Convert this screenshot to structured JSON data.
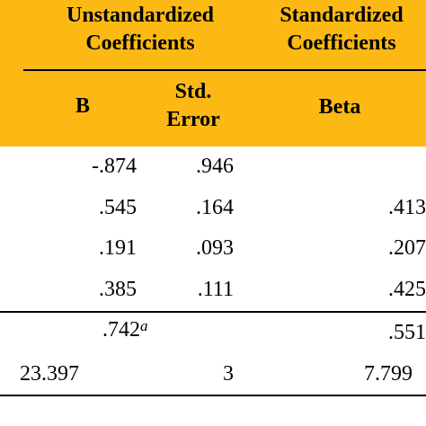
{
  "header": {
    "unstandardized": [
      "Unstandardized",
      "Coefficients"
    ],
    "standardized": [
      "Standardized",
      "Coefficients"
    ],
    "col_b": "B",
    "col_std_error": [
      "Std.",
      "Error"
    ],
    "col_beta": "Beta"
  },
  "rows": [
    {
      "b": "-.874",
      "se": ".946",
      "beta": ""
    },
    {
      "b": ".545",
      "se": ".164",
      "beta": ".413"
    },
    {
      "b": ".191",
      "se": ".093",
      "beta": ".207"
    },
    {
      "b": ".385",
      "se": ".111",
      "beta": ".425"
    }
  ],
  "summary": [
    {
      "b": ".742",
      "b_sup": "a",
      "se": "",
      "beta": ".551"
    },
    {
      "b": "23.397",
      "se": "3",
      "beta": "7.799"
    }
  ]
}
